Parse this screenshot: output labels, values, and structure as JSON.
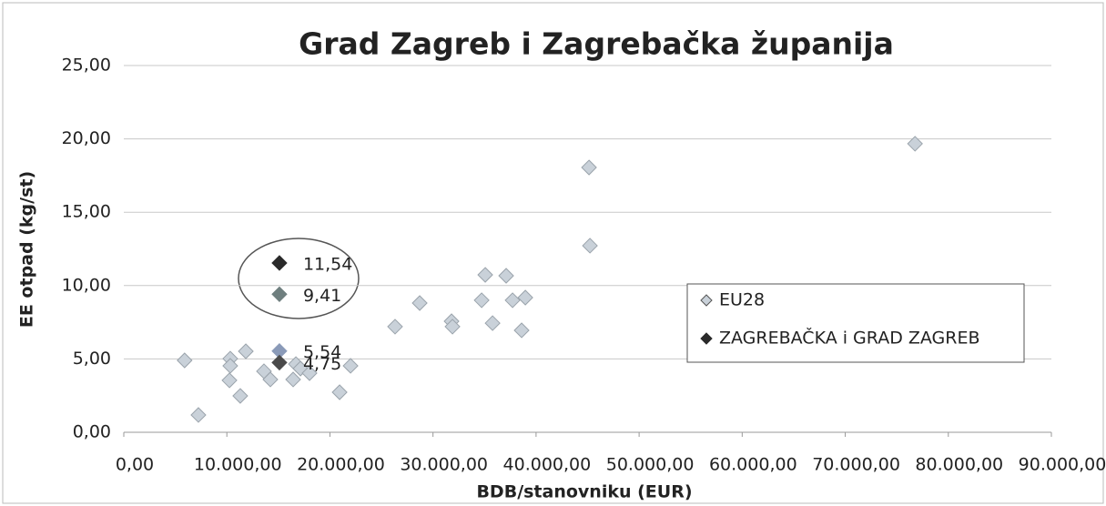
{
  "chart_data": {
    "type": "scatter",
    "title": "Grad Zagreb i Zagrebačka županija",
    "x_label": "BDB/stanovniku (EUR)",
    "y_label": "EE otpad (kg/st)",
    "xlim": [
      0,
      90000
    ],
    "ylim": [
      0,
      25
    ],
    "xticks": [
      {
        "value": 0,
        "label": "0,00"
      },
      {
        "value": 10000,
        "label": "10.000,00"
      },
      {
        "value": 20000,
        "label": "20.000,00"
      },
      {
        "value": 30000,
        "label": "30.000,00"
      },
      {
        "value": 40000,
        "label": "40.000,00"
      },
      {
        "value": 50000,
        "label": "50.000,00"
      },
      {
        "value": 60000,
        "label": "60.000,00"
      },
      {
        "value": 70000,
        "label": "70.000,00"
      },
      {
        "value": 80000,
        "label": "80.000,00"
      },
      {
        "value": 90000,
        "label": "90.000,00"
      }
    ],
    "yticks": [
      {
        "value": 0,
        "label": "0,00"
      },
      {
        "value": 5,
        "label": "5,00"
      },
      {
        "value": 10,
        "label": "10,00"
      },
      {
        "value": 15,
        "label": "15,00"
      },
      {
        "value": 20,
        "label": "20,00"
      },
      {
        "value": 25,
        "label": "25,00"
      }
    ],
    "grid": true,
    "legend": "right",
    "series": [
      {
        "name": "EU28",
        "color": "#c9d1d9",
        "x": [
          5900,
          7240,
          10330,
          10330,
          10250,
          11840,
          11300,
          13600,
          14220,
          16430,
          16700,
          17140,
          18020,
          22000,
          20940,
          26320,
          28710,
          31800,
          31890,
          35070,
          34720,
          35780,
          37100,
          37720,
          38960,
          38600,
          45140,
          45230,
          76770
        ],
        "values": [
          4.9,
          1.18,
          5.02,
          4.53,
          3.54,
          5.52,
          2.48,
          4.16,
          3.6,
          3.6,
          4.65,
          4.34,
          4.03,
          4.53,
          2.73,
          7.2,
          8.81,
          7.57,
          7.2,
          10.73,
          9.0,
          7.44,
          10.67,
          9.0,
          9.18,
          6.95,
          18.05,
          12.72,
          19.67
        ]
      },
      {
        "name": "ZAGREBAČKA i GRAD ZAGREB",
        "color": "#2a2a2a",
        "colors": [
          "#2a2a2a",
          "#6f7f7f",
          "#8a9ab8",
          "#4a4a4a"
        ],
        "x": [
          15100,
          15100,
          15100,
          15100
        ],
        "values": [
          11.54,
          9.41,
          5.54,
          4.75
        ],
        "value_labels": [
          "11,54",
          "9,41",
          "5,54",
          "4,75"
        ]
      }
    ]
  }
}
